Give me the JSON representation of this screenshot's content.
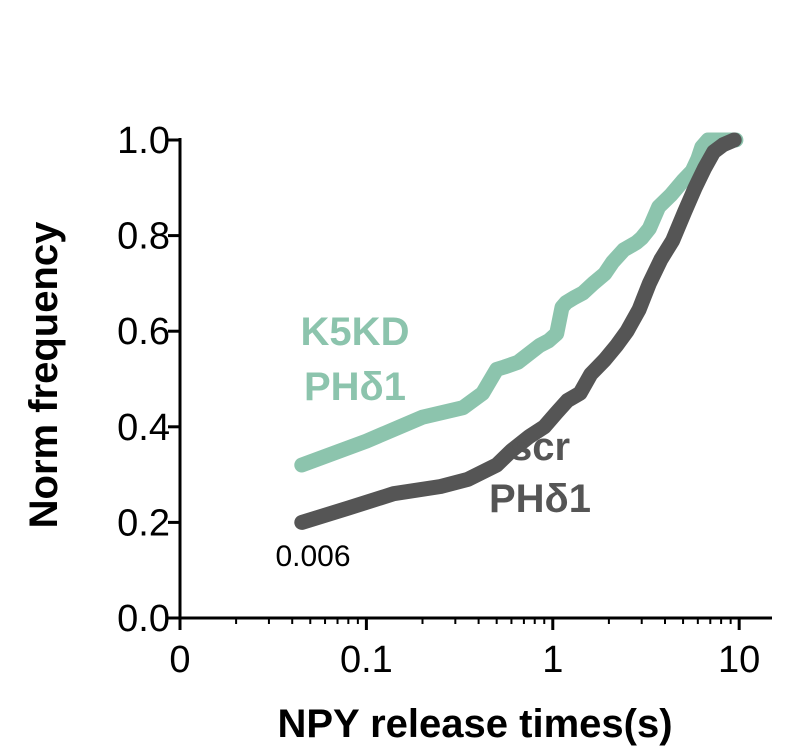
{
  "chart_data": {
    "type": "line",
    "title": "",
    "xlabel": "NPY release times(s)",
    "ylabel": "Norm frequency",
    "x_scale": "log",
    "xlim": [
      0.01,
      15
    ],
    "ylim": [
      0.0,
      1.0
    ],
    "x_ticks": [
      {
        "value": 0.01,
        "label": "0"
      },
      {
        "value": 0.1,
        "label": "0.1"
      },
      {
        "value": 1,
        "label": "1"
      },
      {
        "value": 10,
        "label": "10"
      }
    ],
    "y_ticks": [
      {
        "value": 0.0,
        "label": "0.0"
      },
      {
        "value": 0.2,
        "label": "0.2"
      },
      {
        "value": 0.4,
        "label": "0.4"
      },
      {
        "value": 0.6,
        "label": "0.6"
      },
      {
        "value": 0.8,
        "label": "0.8"
      },
      {
        "value": 1.0,
        "label": "1.0"
      }
    ],
    "grid": false,
    "series": [
      {
        "name": "K5KD PHδ1",
        "label_lines": [
          "K5KD",
          "PHδ1"
        ],
        "color": "#8cc4ad",
        "x": [
          0.045,
          0.1,
          0.2,
          0.33,
          0.42,
          0.5,
          0.55,
          0.65,
          0.85,
          0.95,
          1.05,
          1.12,
          1.18,
          1.3,
          1.45,
          1.65,
          1.9,
          2.1,
          2.4,
          2.8,
          3.0,
          3.3,
          3.7,
          4.3,
          5.0,
          5.6,
          6.0,
          6.3,
          6.8,
          7.5,
          8.5,
          9.6
        ],
        "y": [
          0.32,
          0.37,
          0.42,
          0.44,
          0.47,
          0.52,
          0.525,
          0.535,
          0.57,
          0.58,
          0.595,
          0.65,
          0.66,
          0.67,
          0.68,
          0.7,
          0.72,
          0.745,
          0.77,
          0.785,
          0.795,
          0.815,
          0.86,
          0.885,
          0.915,
          0.935,
          0.96,
          0.985,
          1.0,
          1.0,
          1.0,
          1.0
        ]
      },
      {
        "name": "scr PHδ1",
        "label_lines": [
          "scr",
          "PHδ1"
        ],
        "color": "#555555",
        "x": [
          0.045,
          0.08,
          0.14,
          0.25,
          0.35,
          0.5,
          0.6,
          0.75,
          0.9,
          1.05,
          1.2,
          1.4,
          1.6,
          1.9,
          2.2,
          2.5,
          2.9,
          3.3,
          3.8,
          4.4,
          5.1,
          5.8,
          6.5,
          7.3,
          8.2,
          9.4
        ],
        "y": [
          0.2,
          0.23,
          0.26,
          0.275,
          0.29,
          0.32,
          0.35,
          0.38,
          0.4,
          0.43,
          0.455,
          0.47,
          0.51,
          0.54,
          0.57,
          0.6,
          0.645,
          0.7,
          0.75,
          0.79,
          0.85,
          0.9,
          0.94,
          0.975,
          0.99,
          1.0
        ]
      }
    ],
    "annotations": [
      {
        "text": "0.006"
      }
    ]
  }
}
